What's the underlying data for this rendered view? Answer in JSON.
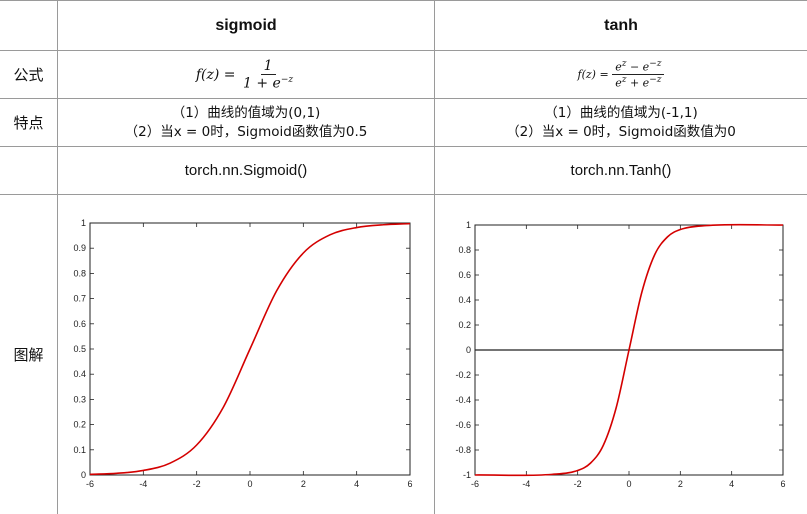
{
  "table": {
    "columns": [
      "sigmoid",
      "tanh"
    ],
    "rows": {
      "formula": {
        "label": "公式"
      },
      "features": {
        "label": "特点",
        "sigmoid": [
          "（1）曲线的值域为(0,1)",
          "（2）当x = 0时，Sigmoid函数值为0.5"
        ],
        "tanh": [
          "（1）曲线的值域为(-1,1)",
          "（2）当x = 0时，Sigmoid函数值为0"
        ]
      },
      "api": {
        "sigmoid": "torch.nn.Sigmoid()",
        "tanh": "torch.nn.Tanh()"
      },
      "plot": {
        "label": "图解"
      }
    }
  },
  "formulas": {
    "sigmoid": {
      "lhs": "f(z) =",
      "numerator": "1",
      "den_base": "1 + e",
      "den_exp": "−z"
    },
    "tanh": {
      "lhs": "f(z) =",
      "num_a": "e",
      "num_a_exp": "z",
      "num_op": " − e",
      "num_b_exp": "−z",
      "den_a": "e",
      "den_a_exp": "z",
      "den_op": " + e",
      "den_b_exp": "−z"
    }
  },
  "colors": {
    "curve": "#d40000",
    "grid_line": "#9a9a9a",
    "axis": "#222222"
  },
  "chart_data": [
    {
      "type": "line",
      "function": "sigmoid",
      "xlim": [
        -6,
        6
      ],
      "ylim": [
        0,
        1
      ],
      "x_ticks": [
        -6,
        -4,
        -2,
        0,
        2,
        4,
        6
      ],
      "y_ticks": [
        0,
        0.1,
        0.2,
        0.3,
        0.4,
        0.5,
        0.6,
        0.7,
        0.8,
        0.9,
        1
      ],
      "x": [
        -6,
        -5,
        -4,
        -3,
        -2,
        -1,
        0,
        1,
        2,
        3,
        4,
        5,
        6
      ],
      "y": [
        0.0025,
        0.0067,
        0.018,
        0.047,
        0.119,
        0.269,
        0.5,
        0.731,
        0.881,
        0.953,
        0.982,
        0.993,
        0.9975
      ],
      "series": [
        {
          "color": "#d40000"
        }
      ],
      "grid": false,
      "zero_line": false
    },
    {
      "type": "line",
      "function": "tanh",
      "xlim": [
        -6,
        6
      ],
      "ylim": [
        -1,
        1
      ],
      "x_ticks": [
        -6,
        -4,
        -2,
        0,
        2,
        4,
        6
      ],
      "y_ticks": [
        -1,
        -0.8,
        -0.6,
        -0.4,
        -0.2,
        0,
        0.2,
        0.4,
        0.6,
        0.8,
        1
      ],
      "x": [
        -6,
        -3,
        -2,
        -1.5,
        -1,
        -0.5,
        0,
        0.5,
        1,
        1.5,
        2,
        3,
        6
      ],
      "y": [
        -1,
        -0.995,
        -0.964,
        -0.905,
        -0.762,
        -0.462,
        0,
        0.462,
        0.762,
        0.905,
        0.964,
        0.995,
        1
      ],
      "series": [
        {
          "color": "#d40000"
        }
      ],
      "grid": false,
      "zero_line": true
    }
  ]
}
